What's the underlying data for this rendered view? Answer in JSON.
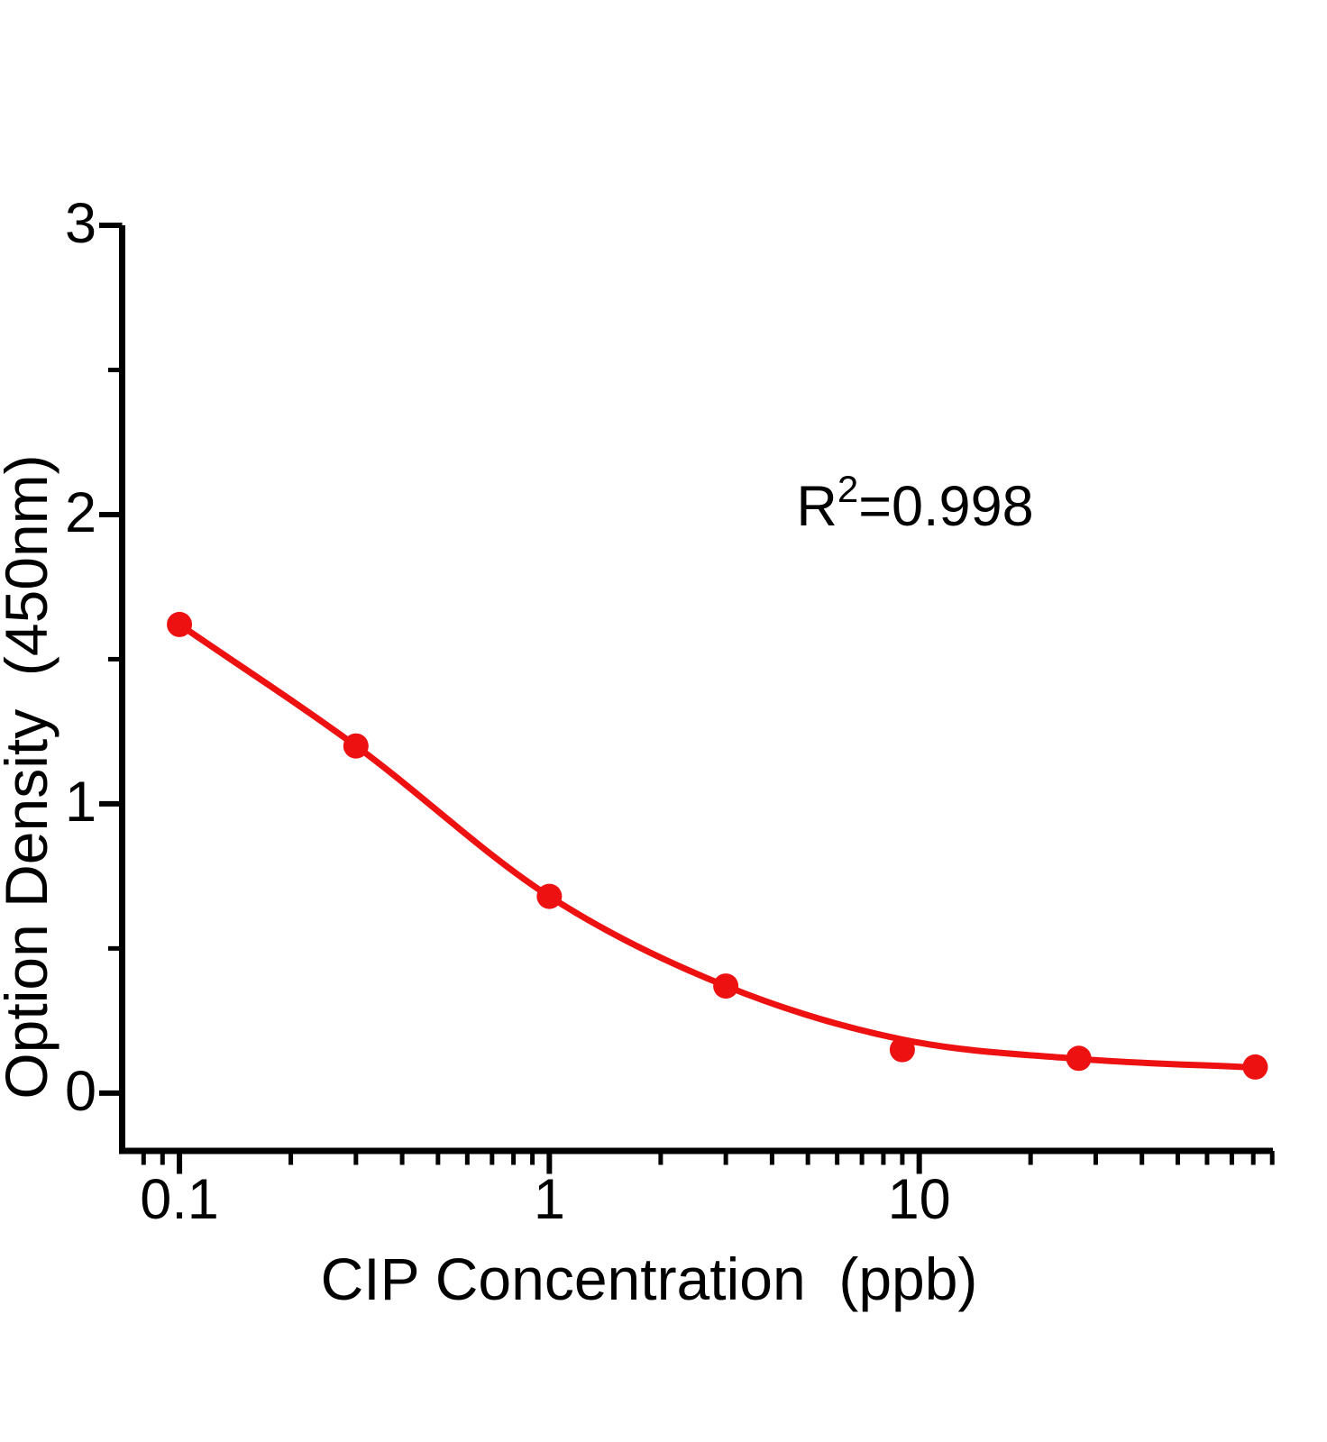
{
  "chart_data": {
    "type": "scatter",
    "title": "",
    "xlabel": "CIP Concentration  (ppb)",
    "ylabel": "Option Density  (450nm)",
    "annotation": {
      "prefix": "R",
      "sup": "2",
      "suffix": "=0.998"
    },
    "x_scale": "log",
    "xlim": [
      0.07,
      90.4
    ],
    "ylim": [
      -0.2,
      3
    ],
    "x": [
      0.1,
      0.3,
      1,
      3,
      9,
      27,
      81
    ],
    "y": [
      1.62,
      1.2,
      0.68,
      0.37,
      0.15,
      0.12,
      0.09
    ],
    "fit_y": [
      1.62,
      1.2,
      0.68,
      0.37,
      0.185,
      0.118,
      0.088
    ],
    "x_ticks_major": [
      0.1,
      1,
      10
    ],
    "x_tick_labels": [
      "0.1",
      "1",
      "10"
    ],
    "x_ticks_minor": [
      0.08,
      0.09,
      0.2,
      0.3,
      0.4,
      0.5,
      0.6,
      0.7,
      0.8,
      0.9,
      2,
      3,
      4,
      5,
      6,
      7,
      8,
      9,
      20,
      30,
      40,
      50,
      60,
      70,
      80,
      90
    ],
    "y_ticks_major": [
      0,
      1,
      2,
      3
    ],
    "y_tick_labels": [
      "0",
      "1",
      "2",
      "3"
    ],
    "y_ticks_minor": [
      0.5,
      1.5,
      2.5
    ],
    "grid": false,
    "legend": "none",
    "marker": "circle",
    "colors": {
      "series": "#EE1111",
      "axis": "#000000",
      "background": "#FFFFFF"
    }
  }
}
